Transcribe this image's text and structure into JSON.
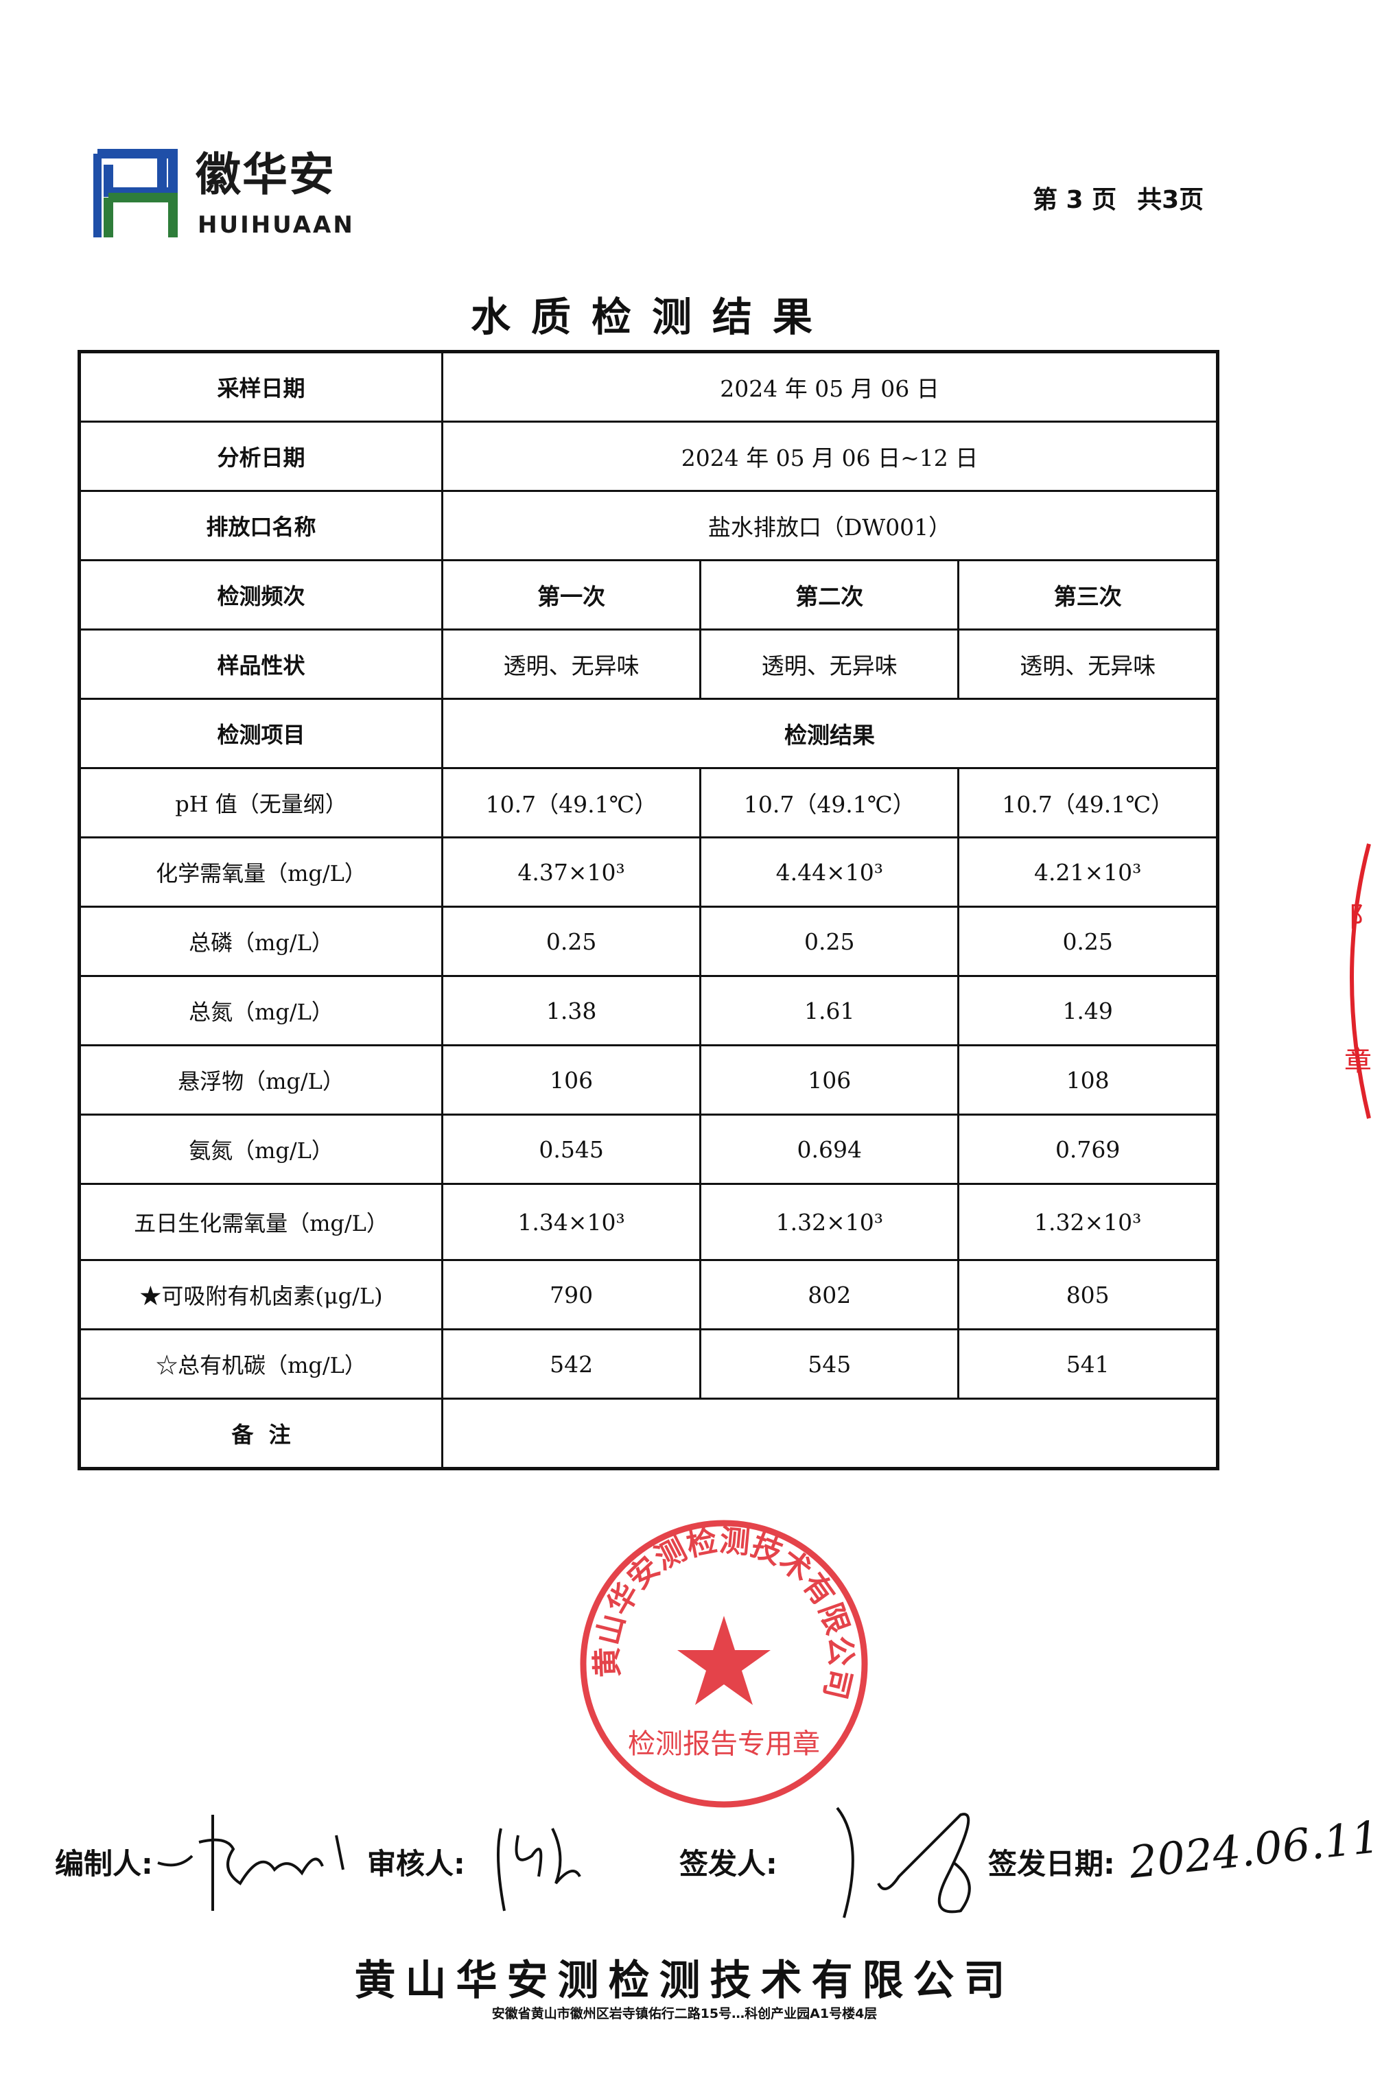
{
  "header": {
    "logo_cn": "徽华安",
    "logo_en": "HUIHUAAN",
    "page_current": "第 3 页",
    "page_total": "共3页"
  },
  "title": "水质检测结果",
  "table": {
    "sampling_date_label": "采样日期",
    "sampling_date": "2024 年 05 月 06 日",
    "analysis_date_label": "分析日期",
    "analysis_date": "2024 年 05 月 06 日~12 日",
    "outlet_label": "排放口名称",
    "outlet": "盐水排放口（DW001）",
    "frequency_label": "检测频次",
    "frequencies": [
      "第一次",
      "第二次",
      "第三次"
    ],
    "appearance_label": "样品性状",
    "appearances": [
      "透明、无异味",
      "透明、无异味",
      "透明、无异味"
    ],
    "item_header": "检测项目",
    "result_header": "检测结果",
    "rows": [
      {
        "item": "pH 值（无量纲）",
        "values": [
          "10.7（49.1℃）",
          "10.7（49.1℃）",
          "10.7（49.1℃）"
        ]
      },
      {
        "item": "化学需氧量（mg/L）",
        "values": [
          "4.37×10³",
          "4.44×10³",
          "4.21×10³"
        ]
      },
      {
        "item": "总磷（mg/L）",
        "values": [
          "0.25",
          "0.25",
          "0.25"
        ]
      },
      {
        "item": "总氮（mg/L）",
        "values": [
          "1.38",
          "1.61",
          "1.49"
        ]
      },
      {
        "item": "悬浮物（mg/L）",
        "values": [
          "106",
          "106",
          "108"
        ]
      },
      {
        "item": "氨氮（mg/L）",
        "values": [
          "0.545",
          "0.694",
          "0.769"
        ]
      },
      {
        "item": "五日生化需氧量（mg/L）",
        "values": [
          "1.34×10³",
          "1.32×10³",
          "1.32×10³"
        ]
      },
      {
        "item": "★可吸附有机卤素(μg/L)",
        "values": [
          "790",
          "802",
          "805"
        ]
      },
      {
        "item": "☆总有机碳（mg/L）",
        "values": [
          "542",
          "545",
          "541"
        ]
      }
    ],
    "remarks_label": "备  注",
    "remarks": ""
  },
  "signatures": {
    "compiler_label": "编制人:",
    "reviewer_label": "审核人:",
    "issuer_label": "签发人:",
    "issue_date_label": "签发日期:",
    "issue_date_handwritten": "2024.06.11"
  },
  "footer": {
    "company": "黄山华安测检测技术有限公司",
    "address": "安徽省黄山市徽州区岩寺镇佑行二路15号…科创产业园A1号楼4层"
  },
  "stamp": {
    "text": "黄山华安测检测技术有限公司",
    "subtext": "检测报告专用章",
    "color": "#e0232b"
  },
  "colors": {
    "logo_blue": "#1f4fa8",
    "logo_green": "#2e7d3a"
  }
}
